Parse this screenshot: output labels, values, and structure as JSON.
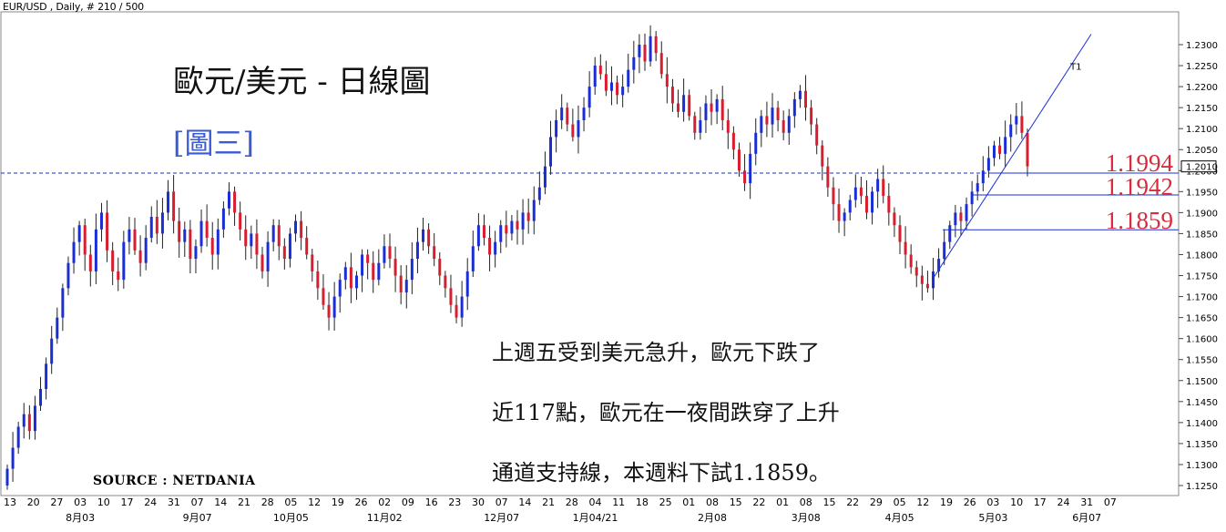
{
  "header": {
    "symbol_info": "EUR/USD , Daily, # 210 / 500"
  },
  "title": "歐元/美元 - 日線圖",
  "subtitle": "[圖三]",
  "annotation_lines": [
    "上週五受到美元急升，歐元下跌了",
    "近117點，歐元在一夜間跌穿了上升",
    "通道支持線，本週料下試1.1859。"
  ],
  "source": "SOURCE : NETDANIA",
  "colors": {
    "up": "#1a2ed6",
    "down": "#d81e2e",
    "line": "#1a2ed6",
    "level_text": "#d82c3a"
  },
  "chart_data": {
    "type": "candlestick",
    "ylim": [
      1.1225,
      1.2325
    ],
    "yticks": [
      "1.2300",
      "1.2250",
      "1.2200",
      "1.2150",
      "1.2100",
      "1.2050",
      "1.2000",
      "1.1950",
      "1.1900",
      "1.1850",
      "1.1800",
      "1.1750",
      "1.1700",
      "1.1650",
      "1.1600",
      "1.1550",
      "1.1500",
      "1.1450",
      "1.1400",
      "1.1350",
      "1.1300",
      "1.1250"
    ],
    "current_price": "1.2010",
    "xticks": [
      "13",
      "20",
      "27",
      "03",
      "10",
      "17",
      "24",
      "31",
      "07",
      "14",
      "21",
      "28",
      "05",
      "12",
      "19",
      "26",
      "02",
      "09",
      "16",
      "23",
      "30",
      "07",
      "14",
      "21",
      "28",
      "04",
      "11",
      "18",
      "25",
      "01",
      "08",
      "15",
      "22",
      "01",
      "08",
      "15",
      "22",
      "29",
      "05",
      "12",
      "19",
      "26",
      "03",
      "10",
      "17",
      "24",
      "31",
      "07"
    ],
    "month_labels": [
      "8月03",
      "9月07",
      "10月05",
      "11月02",
      "12月07",
      "1月04/21",
      "2月08",
      "3月08",
      "4月05",
      "5月03",
      "6月07"
    ],
    "levels": [
      {
        "label": "1.1994",
        "value": 1.1994
      },
      {
        "label": "1.1942",
        "value": 1.1942
      },
      {
        "label": "1.1859",
        "value": 1.1859
      }
    ],
    "trendline_label": "T1",
    "closes": [
      1.129,
      1.134,
      1.139,
      1.142,
      1.138,
      1.144,
      1.148,
      1.154,
      1.16,
      1.165,
      1.172,
      1.178,
      1.183,
      1.187,
      1.18,
      1.176,
      1.186,
      1.19,
      1.181,
      1.176,
      1.174,
      1.183,
      1.186,
      1.181,
      1.178,
      1.184,
      1.189,
      1.185,
      1.19,
      1.195,
      1.188,
      1.183,
      1.186,
      1.179,
      1.182,
      1.188,
      1.184,
      1.18,
      1.186,
      1.191,
      1.195,
      1.19,
      1.186,
      1.182,
      1.185,
      1.18,
      1.176,
      1.183,
      1.187,
      1.182,
      1.179,
      1.185,
      1.188,
      1.184,
      1.18,
      1.176,
      1.172,
      1.168,
      1.165,
      1.17,
      1.174,
      1.177,
      1.172,
      1.175,
      1.18,
      1.178,
      1.174,
      1.178,
      1.182,
      1.179,
      1.175,
      1.171,
      1.174,
      1.179,
      1.183,
      1.186,
      1.182,
      1.179,
      1.175,
      1.172,
      1.168,
      1.165,
      1.17,
      1.176,
      1.182,
      1.187,
      1.184,
      1.18,
      1.183,
      1.187,
      1.185,
      1.188,
      1.186,
      1.19,
      1.188,
      1.193,
      1.196,
      1.201,
      1.208,
      1.212,
      1.215,
      1.211,
      1.208,
      1.212,
      1.215,
      1.22,
      1.225,
      1.223,
      1.219,
      1.221,
      1.218,
      1.22,
      1.224,
      1.227,
      1.23,
      1.226,
      1.232,
      1.228,
      1.223,
      1.22,
      1.216,
      1.214,
      1.218,
      1.213,
      1.209,
      1.212,
      1.216,
      1.214,
      1.217,
      1.212,
      1.209,
      1.205,
      1.2,
      1.197,
      1.204,
      1.209,
      1.213,
      1.211,
      1.215,
      1.212,
      1.209,
      1.213,
      1.217,
      1.219,
      1.215,
      1.211,
      1.206,
      1.201,
      1.196,
      1.192,
      1.188,
      1.19,
      1.193,
      1.196,
      1.194,
      1.19,
      1.195,
      1.198,
      1.194,
      1.19,
      1.187,
      1.183,
      1.18,
      1.177,
      1.175,
      1.173,
      1.172,
      1.176,
      1.179,
      1.183,
      1.187,
      1.19,
      1.188,
      1.192,
      1.195,
      1.197,
      1.2,
      1.203,
      1.206,
      1.204,
      1.208,
      1.211,
      1.213,
      1.209,
      1.201
    ]
  }
}
